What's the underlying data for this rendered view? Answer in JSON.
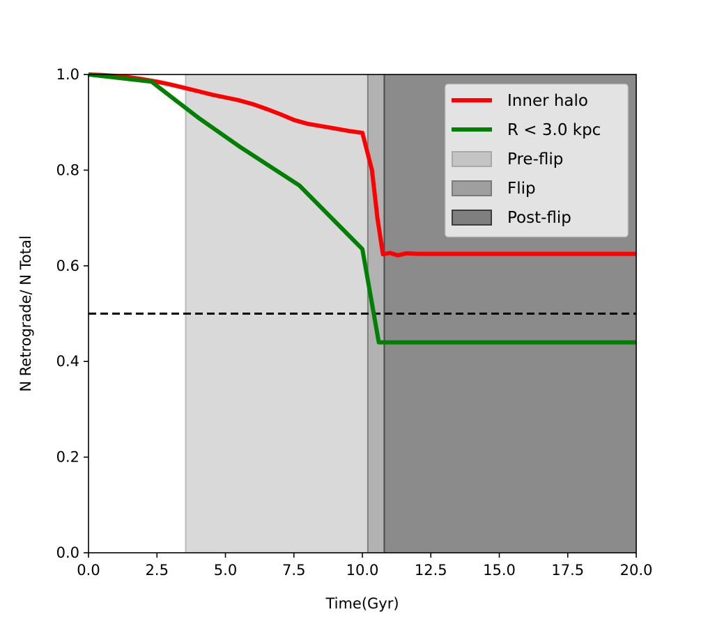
{
  "chart_data": {
    "type": "line",
    "title": "",
    "xlabel": "Time(Gyr)",
    "ylabel": "N Retrograde/ N Total",
    "xlim": [
      0,
      20
    ],
    "ylim": [
      0,
      1
    ],
    "xticks": [
      "0.0",
      "2.5",
      "5.0",
      "7.5",
      "10.0",
      "12.5",
      "15.0",
      "17.5",
      "20.0"
    ],
    "yticks": [
      "0.0",
      "0.2",
      "0.4",
      "0.6",
      "0.8",
      "1.0"
    ],
    "grid": false,
    "legend_position": "top-right",
    "series": [
      {
        "name": "Inner halo",
        "color": "#ff0000",
        "x": [
          0,
          0.5,
          1.0,
          1.5,
          2.0,
          2.5,
          3.0,
          3.5,
          4.0,
          4.5,
          5.0,
          5.5,
          6.0,
          6.5,
          7.0,
          7.5,
          8.0,
          8.5,
          9.0,
          9.5,
          10.0,
          10.35,
          10.55,
          10.75,
          11.0,
          11.3,
          11.6,
          12.0,
          20.0
        ],
        "y": [
          1.0,
          0.999,
          0.997,
          0.994,
          0.99,
          0.985,
          0.979,
          0.972,
          0.965,
          0.958,
          0.952,
          0.946,
          0.938,
          0.928,
          0.917,
          0.905,
          0.897,
          0.892,
          0.887,
          0.882,
          0.878,
          0.8,
          0.7,
          0.624,
          0.627,
          0.622,
          0.626,
          0.625,
          0.625
        ]
      },
      {
        "name": "R < 3.0 kpc",
        "color": "#008000",
        "x": [
          0,
          2.3,
          4.0,
          5.5,
          7.7,
          10.0,
          10.6,
          20.0
        ],
        "y": [
          1.0,
          0.985,
          0.91,
          0.85,
          0.768,
          0.635,
          0.44,
          0.44
        ]
      }
    ],
    "reference_line": {
      "y": 0.5,
      "color": "#000000",
      "style": "dashed"
    },
    "regions": [
      {
        "name": "Pre-flip",
        "x0": 3.55,
        "x1": 10.2,
        "fill": "#d9d9d9",
        "edge": "#bcbcbc",
        "legend_fill": "#c4c4c4",
        "legend_edge": "#a9a9a9"
      },
      {
        "name": "Flip",
        "x0": 10.2,
        "x1": 10.8,
        "fill": "#b2b2b2",
        "edge": "#7f7f7f",
        "legend_fill": "#9f9f9f",
        "legend_edge": "#7a7a7a"
      },
      {
        "name": "Post-flip",
        "x0": 10.8,
        "x1": 20.0,
        "fill": "#8b8b8b",
        "edge": "#4a4a4a",
        "legend_fill": "#7f7f7f",
        "legend_edge": "#3c3c3c"
      }
    ]
  }
}
